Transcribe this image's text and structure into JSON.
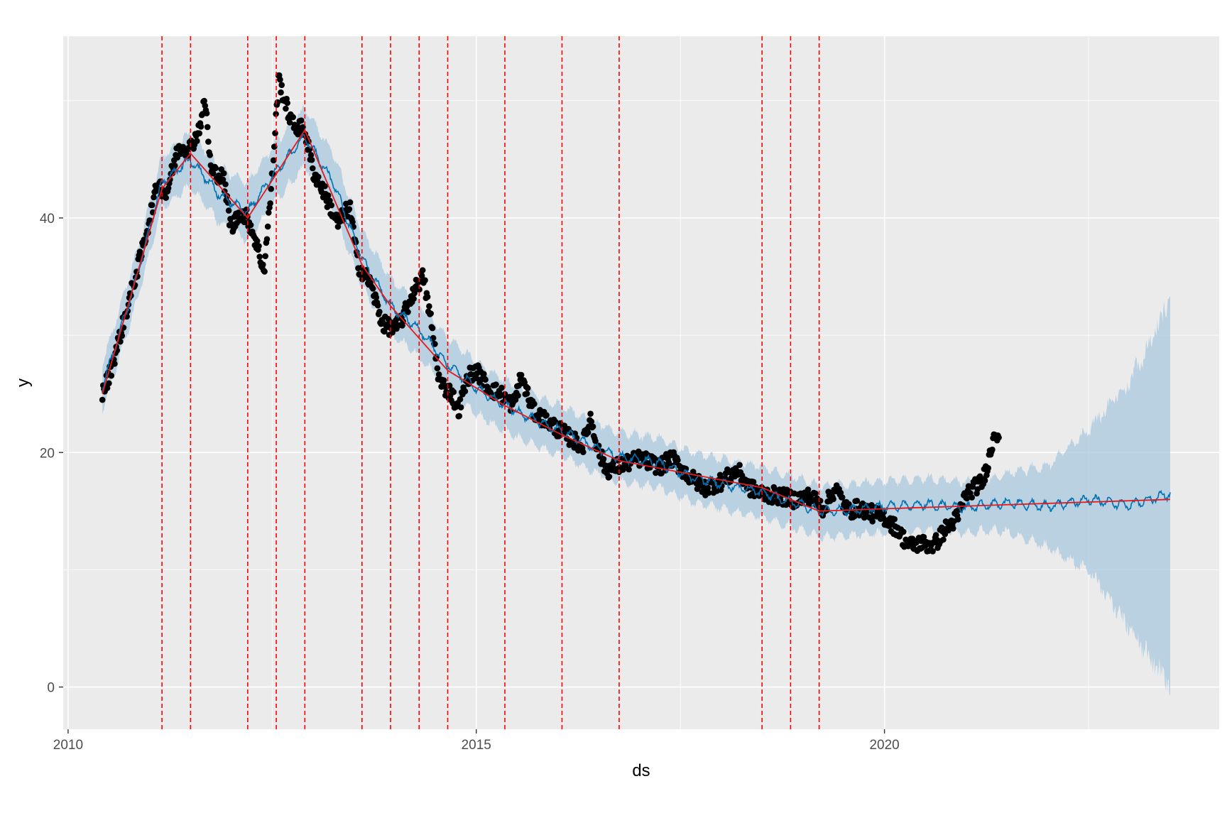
{
  "chart_data": {
    "type": "line",
    "title": "",
    "xlabel": "ds",
    "ylabel": "y",
    "xlim": [
      2009.94,
      2024.1
    ],
    "ylim": [
      -3.6,
      55.5
    ],
    "x_ticks": [
      2010,
      2015,
      2020
    ],
    "x_tick_labels": [
      "2010",
      "2015",
      "2020"
    ],
    "y_ticks": [
      0,
      20,
      40
    ],
    "y_tick_labels": [
      "0",
      "20",
      "40"
    ],
    "grid": true,
    "legend": "none",
    "colors": {
      "panel": "#ebebeb",
      "grid": "#ffffff",
      "observed": "#000000",
      "forecast": "#0072b2",
      "interval": "#a8c8de",
      "trend": "#e41a1c",
      "changepoints": "#ff0000"
    },
    "changepoints": [
      2011.15,
      2011.5,
      2012.2,
      2012.55,
      2012.9,
      2013.6,
      2013.95,
      2014.3,
      2014.65,
      2015.35,
      2016.05,
      2016.75,
      2018.5,
      2018.85,
      2019.2
    ],
    "trend": {
      "x": [
        2010.42,
        2011.15,
        2011.5,
        2012.2,
        2012.9,
        2013.6,
        2013.95,
        2014.65,
        2015.35,
        2016.05,
        2016.75,
        2018.5,
        2018.85,
        2019.2,
        2020.0,
        2023.5
      ],
      "y": [
        25.0,
        42.5,
        45.5,
        40.0,
        47.5,
        36.0,
        32.5,
        27.0,
        24.0,
        21.5,
        19.3,
        17.0,
        16.0,
        15.0,
        15.2,
        16.0
      ]
    },
    "forecast": {
      "x": [
        2010.42,
        2010.8,
        2011.15,
        2011.5,
        2011.85,
        2012.2,
        2012.55,
        2012.9,
        2013.25,
        2013.6,
        2013.95,
        2014.3,
        2014.65,
        2015.0,
        2015.35,
        2015.7,
        2016.05,
        2016.4,
        2016.75,
        2017.2,
        2017.6,
        2018.0,
        2018.5,
        2018.85,
        2019.2,
        2019.6,
        2020.0,
        2020.5,
        2021.0,
        2021.5,
        2022.0,
        2022.5,
        2023.0,
        2023.5
      ],
      "y": [
        25.5,
        34.0,
        43.0,
        45.0,
        42.0,
        40.5,
        44.0,
        47.0,
        43.0,
        36.5,
        32.5,
        30.5,
        27.5,
        25.5,
        24.0,
        22.8,
        21.8,
        20.6,
        19.6,
        19.2,
        18.0,
        17.3,
        16.6,
        15.8,
        15.0,
        15.1,
        15.4,
        15.6,
        15.3,
        15.7,
        15.4,
        16.0,
        15.5,
        16.5
      ]
    },
    "interval_halfwidth": {
      "x": [
        2010.42,
        2012.5,
        2014.0,
        2016.0,
        2018.0,
        2020.0,
        2021.35,
        2022.0,
        2022.5,
        2023.0,
        2023.5
      ],
      "y": [
        2.0,
        2.5,
        2.3,
        2.1,
        2.1,
        2.2,
        2.2,
        3.5,
        6.0,
        10.5,
        16.5
      ]
    },
    "observed": {
      "x": [
        2010.42,
        2010.5,
        2010.6,
        2010.75,
        2010.9,
        2011.0,
        2011.1,
        2011.2,
        2011.35,
        2011.5,
        2011.6,
        2011.68,
        2011.75,
        2011.9,
        2012.0,
        2012.1,
        2012.2,
        2012.3,
        2012.4,
        2012.5,
        2012.58,
        2012.65,
        2012.75,
        2012.9,
        2013.0,
        2013.15,
        2013.3,
        2013.45,
        2013.55,
        2013.7,
        2013.85,
        2014.0,
        2014.1,
        2014.25,
        2014.35,
        2014.45,
        2014.55,
        2014.7,
        2014.78,
        2014.9,
        2015.0,
        2015.15,
        2015.3,
        2015.45,
        2015.55,
        2015.7,
        2015.9,
        2016.1,
        2016.3,
        2016.4,
        2016.5,
        2016.6,
        2016.8,
        2017.0,
        2017.25,
        2017.4,
        2017.6,
        2017.8,
        2018.0,
        2018.2,
        2018.35,
        2018.5,
        2018.7,
        2018.9,
        2019.1,
        2019.25,
        2019.4,
        2019.55,
        2019.7,
        2019.85,
        2020.0,
        2020.15,
        2020.3,
        2020.45,
        2020.6,
        2020.75,
        2020.9,
        2021.0,
        2021.1,
        2021.2,
        2021.3,
        2021.35,
        2021.4
      ],
      "y": [
        25.0,
        26.5,
        29.0,
        33.0,
        37.0,
        40.0,
        43.0,
        42.0,
        46.0,
        46.0,
        47.5,
        50.0,
        44.0,
        43.5,
        39.0,
        40.5,
        40.0,
        38.0,
        35.5,
        43.5,
        52.0,
        50.0,
        48.0,
        47.5,
        44.0,
        42.0,
        39.5,
        41.0,
        36.0,
        34.5,
        31.0,
        30.5,
        31.5,
        34.0,
        35.0,
        31.0,
        26.0,
        25.0,
        23.5,
        26.5,
        27.0,
        25.5,
        25.0,
        24.0,
        26.5,
        23.5,
        22.5,
        21.5,
        20.5,
        23.0,
        20.0,
        18.5,
        19.0,
        19.5,
        18.8,
        19.5,
        18.0,
        17.0,
        17.5,
        18.5,
        17.0,
        16.5,
        16.3,
        16.0,
        16.3,
        15.2,
        17.0,
        15.0,
        15.3,
        14.8,
        14.5,
        13.5,
        12.0,
        12.3,
        12.0,
        13.5,
        14.5,
        16.5,
        17.0,
        17.5,
        20.0,
        22.0,
        21.5
      ]
    }
  }
}
